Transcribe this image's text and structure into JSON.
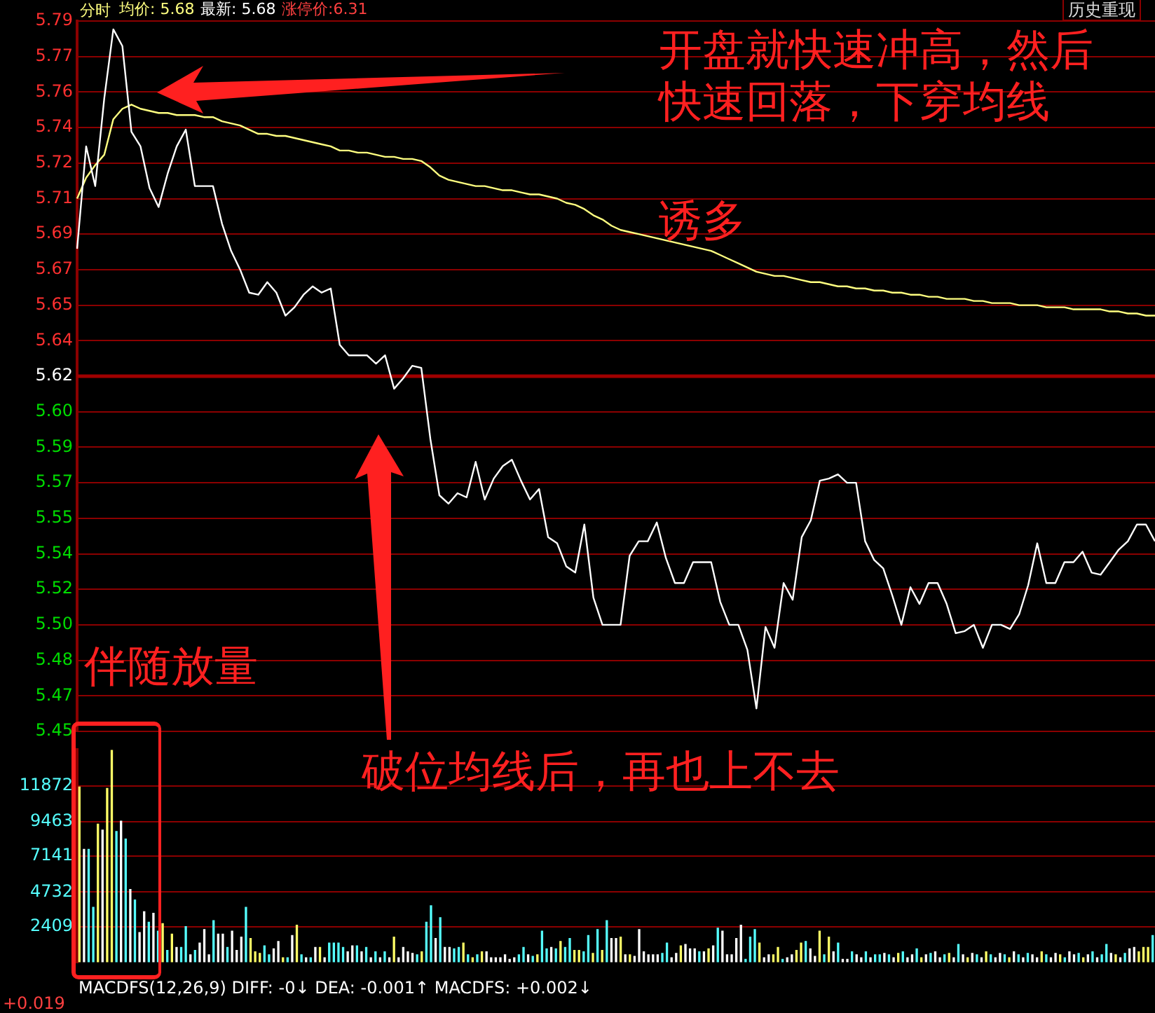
{
  "chart_data": [
    {
      "type": "line",
      "title": "分时",
      "annotations": [
        "均价: 5.68",
        "最新: 5.68",
        "涨停价:6.31",
        "历史重现",
        "开盘就快速冲高，然后快速回落，下穿均线",
        "诱多",
        "伴随放量"
      ],
      "categories": [
        null,
        null,
        null,
        null,
        null,
        null,
        null,
        null,
        null,
        null,
        null,
        null,
        null,
        null,
        null,
        null,
        null,
        null,
        null,
        null,
        null,
        null,
        null,
        null,
        null,
        null,
        null,
        null,
        null,
        null,
        null,
        null,
        null,
        null,
        null,
        null,
        null,
        null,
        null,
        null,
        null,
        null,
        null,
        null,
        null,
        null,
        null,
        null,
        null,
        null,
        null,
        null,
        null,
        null,
        null,
        null,
        null,
        null,
        null,
        null,
        null,
        null,
        null,
        null,
        null,
        null,
        null,
        null,
        null,
        null,
        null,
        null,
        null,
        null,
        null,
        null,
        null,
        null,
        null,
        null,
        null,
        null,
        null,
        null,
        null,
        null,
        null,
        null,
        null,
        null,
        null,
        null,
        null,
        null,
        null,
        null,
        null,
        null,
        null,
        null,
        null,
        null,
        null,
        null,
        null,
        null,
        null,
        null,
        null,
        null,
        null,
        null,
        null,
        null,
        null,
        null,
        null,
        null,
        null,
        null
      ],
      "series": [
        {
          "color": "#ffffff",
          "values": [
            5.681,
            5.73,
            5.711,
            5.753,
            5.786,
            5.778,
            5.737,
            5.73,
            5.71,
            5.701,
            5.717,
            5.73,
            5.738,
            5.711,
            5.711,
            5.711,
            5.693,
            5.68,
            5.671,
            5.66,
            5.659,
            5.665,
            5.66,
            5.649,
            5.653,
            5.659,
            5.663,
            5.66,
            5.662,
            5.635,
            5.63,
            5.63,
            5.63,
            5.626,
            5.63,
            5.614,
            5.619,
            5.625,
            5.624,
            5.59,
            5.563,
            5.559,
            5.564,
            5.562,
            5.579,
            5.561,
            5.571,
            5.577,
            5.58,
            5.57,
            5.561,
            5.566,
            5.543,
            5.54,
            5.529,
            5.526,
            5.549,
            5.514,
            5.501,
            5.501,
            5.501,
            5.534,
            5.541,
            5.541,
            5.55,
            5.533,
            5.521,
            5.521,
            5.531,
            5.531,
            5.531,
            5.512,
            5.501,
            5.501,
            5.489,
            5.461,
            5.5,
            5.49,
            5.521,
            5.513,
            5.543,
            5.551,
            5.57,
            5.571,
            5.573,
            5.569,
            5.569,
            5.541,
            5.532,
            5.528,
            5.515,
            5.501,
            5.519,
            5.511,
            5.521,
            5.521,
            5.511,
            5.497,
            5.498,
            5.501,
            5.49,
            5.501,
            5.501,
            5.499,
            5.506,
            5.52,
            5.54,
            5.521,
            5.521,
            5.531,
            5.531,
            5.536,
            5.526,
            5.525,
            5.531,
            5.537,
            5.541,
            5.549,
            5.549,
            5.541
          ]
        },
        {
          "color": "#ffff80",
          "values": [
            5.705,
            5.715,
            5.721,
            5.726,
            5.743,
            5.748,
            5.75,
            5.748,
            5.747,
            5.746,
            5.746,
            5.745,
            5.745,
            5.745,
            5.744,
            5.744,
            5.742,
            5.741,
            5.74,
            5.738,
            5.736,
            5.736,
            5.735,
            5.735,
            5.734,
            5.733,
            5.732,
            5.731,
            5.73,
            5.728,
            5.728,
            5.727,
            5.727,
            5.726,
            5.725,
            5.725,
            5.724,
            5.724,
            5.723,
            5.72,
            5.716,
            5.714,
            5.713,
            5.712,
            5.711,
            5.711,
            5.71,
            5.709,
            5.709,
            5.708,
            5.707,
            5.707,
            5.706,
            5.705,
            5.703,
            5.702,
            5.7,
            5.697,
            5.695,
            5.692,
            5.69,
            5.689,
            5.688,
            5.687,
            5.686,
            5.685,
            5.684,
            5.683,
            5.682,
            5.681,
            5.68,
            5.678,
            5.676,
            5.674,
            5.672,
            5.67,
            5.669,
            5.668,
            5.668,
            5.667,
            5.666,
            5.665,
            5.665,
            5.664,
            5.663,
            5.663,
            5.662,
            5.662,
            5.661,
            5.661,
            5.66,
            5.66,
            5.659,
            5.659,
            5.658,
            5.658,
            5.657,
            5.657,
            5.657,
            5.656,
            5.656,
            5.655,
            5.655,
            5.655,
            5.654,
            5.654,
            5.654,
            5.653,
            5.653,
            5.653,
            5.652,
            5.652,
            5.652,
            5.652,
            5.651,
            5.651,
            5.65,
            5.65,
            5.649,
            5.649
          ]
        }
      ],
      "ylim": [
        5.45,
        5.79
      ],
      "yticks": [
        {
          "value": 5.45,
          "label": "5.45"
        },
        {
          "value": 5.467,
          "label": "5.47"
        },
        {
          "value": 5.484,
          "label": "5.48"
        },
        {
          "value": 5.501,
          "label": "5.50"
        },
        {
          "value": 5.518,
          "label": "5.52"
        },
        {
          "value": 5.535,
          "label": "5.54"
        },
        {
          "value": 5.552,
          "label": "5.55"
        },
        {
          "value": 5.569,
          "label": "5.57"
        },
        {
          "value": 5.586,
          "label": "5.59"
        },
        {
          "value": 5.603,
          "label": "5.60"
        },
        {
          "value": 5.62,
          "label": "5.62"
        },
        {
          "value": 5.637,
          "label": "5.64"
        },
        {
          "value": 5.654,
          "label": "5.65"
        },
        {
          "value": 5.671,
          "label": "5.67"
        },
        {
          "value": 5.688,
          "label": "5.69"
        },
        {
          "value": 5.705,
          "label": "5.71"
        },
        {
          "value": 5.722,
          "label": "5.72"
        },
        {
          "value": 5.739,
          "label": "5.74"
        },
        {
          "value": 5.756,
          "label": "5.76"
        },
        {
          "value": 5.773,
          "label": "5.77"
        },
        {
          "value": 5.79,
          "label": "5.79"
        }
      ],
      "ref_lines": [
        {
          "axis": "y",
          "value": 5.62,
          "color": "#a00000"
        }
      ],
      "tick_labels": "y",
      "grid": "y",
      "legend": false,
      "marker": "none",
      "line_style": "solid"
    },
    {
      "type": "bar",
      "annotations": [
        "破位均线后，再也上不去",
        "MACDFS(12,26,9) DIFF: -0↓ DEA: -0.001↑ MACDFS: +0.002↓",
        "+0.019"
      ],
      "categories": [
        null,
        null,
        null,
        null,
        null,
        null,
        null,
        null,
        null,
        null,
        null,
        null,
        null,
        null,
        null,
        null,
        null,
        null,
        null,
        null,
        null,
        null,
        null,
        null,
        null,
        null,
        null,
        null,
        null,
        null,
        null,
        null,
        null,
        null,
        null,
        null,
        null,
        null,
        null,
        null,
        null,
        null,
        null,
        null,
        null,
        null,
        null,
        null,
        null,
        null,
        null,
        null,
        null,
        null,
        null,
        null,
        null,
        null,
        null,
        null,
        null,
        null,
        null,
        null,
        null,
        null,
        null,
        null,
        null,
        null,
        null,
        null,
        null,
        null,
        null,
        null,
        null,
        null,
        null,
        null,
        null,
        null,
        null,
        null,
        null,
        null,
        null,
        null,
        null,
        null,
        null,
        null,
        null,
        null,
        null,
        null,
        null,
        null,
        null,
        null,
        null,
        null,
        null,
        null,
        null,
        null,
        null,
        null,
        null,
        null,
        null,
        null,
        null,
        null,
        null,
        null,
        null,
        null,
        null,
        null,
        null,
        null,
        null,
        null,
        null,
        null,
        null,
        null,
        null,
        null,
        null,
        null,
        null,
        null,
        null,
        null,
        null,
        null,
        null,
        null,
        null,
        null,
        null,
        null,
        null,
        null,
        null,
        null,
        null,
        null,
        null,
        null,
        null,
        null,
        null,
        null,
        null,
        null,
        null,
        null,
        null,
        null,
        null,
        null,
        null,
        null,
        null,
        null,
        null,
        null,
        null,
        null,
        null,
        null,
        null,
        null,
        null,
        null,
        null,
        null,
        null,
        null,
        null,
        null,
        null,
        null,
        null,
        null,
        null,
        null,
        null,
        null,
        null,
        null,
        null,
        null,
        null,
        null,
        null,
        null,
        null,
        null,
        null,
        null,
        null,
        null,
        null,
        null,
        null,
        null,
        null,
        null,
        null,
        null,
        null,
        null,
        null,
        null,
        null,
        null,
        null,
        null,
        null,
        null,
        null,
        null,
        null,
        null,
        null,
        null,
        null,
        null,
        null
      ],
      "values": [
        11800,
        7600,
        7600,
        3700,
        9300,
        8900,
        11700,
        14300,
        8800,
        9500,
        8300,
        4900,
        4200,
        2000,
        3400,
        2700,
        3300,
        2100,
        2600,
        800,
        1900,
        1000,
        1000,
        2400,
        500,
        800,
        1300,
        2200,
        500,
        2800,
        1900,
        1900,
        1000,
        2100,
        800,
        1700,
        3700,
        1600,
        700,
        600,
        1100,
        500,
        900,
        1400,
        300,
        300,
        1800,
        2500,
        500,
        300,
        300,
        1000,
        1000,
        300,
        1300,
        1300,
        1300,
        1000,
        700,
        1100,
        1100,
        700,
        1000,
        300,
        700,
        300,
        700,
        300,
        1700,
        300,
        1000,
        700,
        600,
        500,
        700,
        2700,
        3800,
        1600,
        3000,
        1000,
        1000,
        900,
        1000,
        1300,
        500,
        300,
        500,
        700,
        700,
        300,
        300,
        300,
        500,
        200,
        300,
        500,
        1000,
        500,
        400,
        500,
        2100,
        900,
        1000,
        900,
        1400,
        1000,
        1600,
        800,
        800,
        700,
        1800,
        600,
        2200,
        800,
        2800,
        1600,
        1600,
        1700,
        500,
        500,
        400,
        2200,
        700,
        500,
        500,
        500,
        600,
        1300,
        300,
        600,
        1100,
        1200,
        900,
        900,
        700,
        700,
        900,
        1100,
        2300,
        2100,
        500,
        500,
        1600,
        2500,
        200,
        1700,
        2200,
        1300,
        300,
        500,
        500,
        1000,
        200,
        300,
        500,
        800,
        1300,
        1400,
        900,
        400,
        2100,
        500,
        1700,
        700,
        1300,
        200,
        200,
        700,
        500,
        300,
        700,
        300,
        500,
        500,
        600,
        500,
        300,
        600,
        700,
        300,
        500,
        900,
        300,
        500,
        600,
        700,
        300,
        500,
        600,
        300,
        1200,
        500,
        300,
        600,
        500,
        300,
        700,
        500,
        300,
        600,
        500,
        300,
        700,
        500,
        300,
        600,
        500,
        300,
        700,
        500,
        300,
        600,
        500,
        300,
        700,
        500,
        600,
        300,
        500,
        700,
        300,
        500,
        1200,
        600,
        500,
        300,
        600,
        900,
        1000,
        700,
        1000,
        1000,
        1800
      ],
      "colors": [
        "#ffff66",
        "#ffffff",
        "#55ffff",
        "#55ffff",
        "#ffff66",
        "#ffffff",
        "#ffff66",
        "#ffff66",
        "#55ffff",
        "#ffffff",
        "#55ffff",
        "#ffffff",
        "#55ffff",
        "#ffffff",
        "#ffffff",
        "#55ffff",
        "#ffffff",
        "#55ffff",
        "#ffff66",
        "#55ffff",
        "#ffff66",
        "#ffffff",
        "#55ffff",
        "#55ffff",
        "#ffffff",
        "#55ffff",
        "#ffffff",
        "#ffffff",
        "#ffffff",
        "#55ffff",
        "#ffffff",
        "#ffffff",
        "#55ffff",
        "#ffffff",
        "#ffffff",
        "#ffffff",
        "#55ffff",
        "#ffff66",
        "#ffff66",
        "#ffff66",
        "#55ffff",
        "#55ffff",
        "#ffffff",
        "#ffffff",
        "#ffff66",
        "#55ffff",
        "#ffffff",
        "#ffff66",
        "#55ffff",
        "#ffffff",
        "#55ffff",
        "#ffffff",
        "#ffff66",
        "#ffffff",
        "#55ffff",
        "#55ffff",
        "#55ffff",
        "#55ffff",
        "#ffffff",
        "#ffffff",
        "#55ffff",
        "#ffffff",
        "#55ffff",
        "#ffffff",
        "#55ffff",
        "#ffffff",
        "#55ffff",
        "#ffffff",
        "#ffff66",
        "#ffffff",
        "#ffffff",
        "#ffffff",
        "#ffffff",
        "#55ffff",
        "#ffff66",
        "#55ffff",
        "#55ffff",
        "#ffffff",
        "#55ffff",
        "#ffffff",
        "#ffffff",
        "#55ffff",
        "#55ffff",
        "#ffff66",
        "#55ffff",
        "#ffff66",
        "#55ffff",
        "#ffff66",
        "#ffffff",
        "#ffffff",
        "#ffffff",
        "#ffffff",
        "#ffffff",
        "#ffffff",
        "#ffffff",
        "#55ffff",
        "#55ffff",
        "#ffffff",
        "#55ffff",
        "#ffff66",
        "#55ffff",
        "#55ffff",
        "#ffffff",
        "#55ffff",
        "#ffff66",
        "#55ffff",
        "#55ffff",
        "#ffff66",
        "#ffff66",
        "#55ffff",
        "#55ffff",
        "#ffff66",
        "#55ffff",
        "#ffff66",
        "#55ffff",
        "#ffffff",
        "#ffffff",
        "#ffff66",
        "#ffffff",
        "#ffff66",
        "#ffffff",
        "#ffffff",
        "#ffffff",
        "#ffffff",
        "#ffffff",
        "#ffffff",
        "#55ffff",
        "#55ffff",
        "#ffffff",
        "#ffffff",
        "#ffff66",
        "#ffffff",
        "#ffffff",
        "#ffffff",
        "#55ffff",
        "#ffffff",
        "#ffff66",
        "#ffffff",
        "#55ffff",
        "#ffffff",
        "#ffffff",
        "#ffffff",
        "#ffffff",
        "#ffffff",
        "#55ffff",
        "#55ffff",
        "#55ffff",
        "#ffff66",
        "#ffffff",
        "#ffffff",
        "#ffff66",
        "#ffff66",
        "#55ffff",
        "#ffffff",
        "#ffffff",
        "#ffff66",
        "#ffff66",
        "#55ffff",
        "#ffffff",
        "#ffffff",
        "#ffff66",
        "#55ffff",
        "#ffff66",
        "#ffffff",
        "#55ffff",
        "#ffffff",
        "#ffffff",
        "#55ffff",
        "#ffffff",
        "#ffffff",
        "#55ffff",
        "#ffffff",
        "#55ffff",
        "#55ffff",
        "#ffffff",
        "#55ffff",
        "#ffffff",
        "#ffff66",
        "#55ffff",
        "#ffffff",
        "#ffffff",
        "#55ffff",
        "#ffff66",
        "#ffffff",
        "#55ffff",
        "#ffffff",
        "#ffffff",
        "#55ffff",
        "#ffff66",
        "#ffffff",
        "#55ffff",
        "#ffffff",
        "#ffff66",
        "#ffffff",
        "#55ffff",
        "#ffffff",
        "#ffff66",
        "#55ffff",
        "#ffffff",
        "#ffffff",
        "#55ffff",
        "#ffff66",
        "#ffffff",
        "#55ffff",
        "#ffffff",
        "#55ffff",
        "#ffffff",
        "#ffffff",
        "#ffff66",
        "#55ffff",
        "#ffffff",
        "#ffffff",
        "#ffff66",
        "#55ffff",
        "#ffffff",
        "#ffffff",
        "#55ffff",
        "#ffff66",
        "#ffffff",
        "#55ffff",
        "#ffffff",
        "#55ffff",
        "#55ffff",
        "#ffffff",
        "#ffff66",
        "#ffffff",
        "#55ffff",
        "#ffffff",
        "#ffffff",
        "#ffff66",
        "#ffff66",
        "#ffff66",
        "#55ffff"
      ],
      "ylim": [
        0,
        14300
      ],
      "yticks": [
        2409,
        4732,
        7141,
        9463,
        11872
      ],
      "tick_labels": "y",
      "grid": "y",
      "legend": false
    }
  ]
}
